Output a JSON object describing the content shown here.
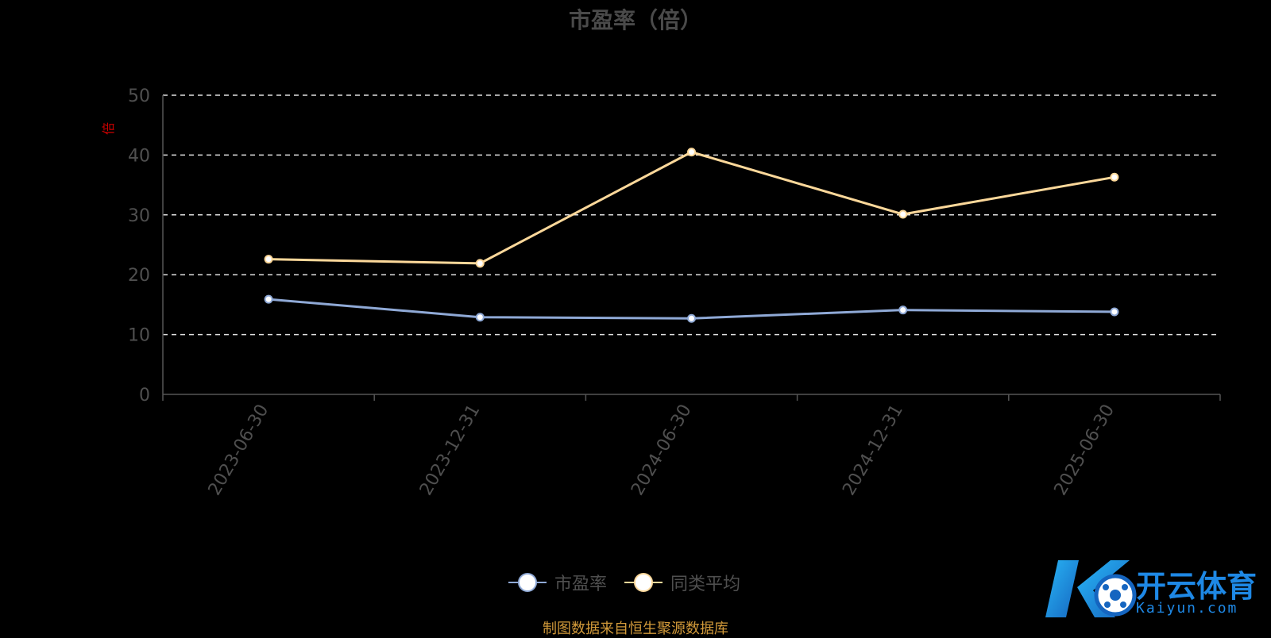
{
  "chart_data": {
    "type": "line",
    "title": "市盈率（倍）",
    "xlabel": "",
    "ylabel": "",
    "y_unit_mark": "倍",
    "categories": [
      "2023-06-30",
      "2023-12-31",
      "2024-06-30",
      "2024-12-31",
      "2025-06-30"
    ],
    "ylim": [
      0,
      50
    ],
    "yticks": [
      0,
      10,
      20,
      30,
      40,
      50
    ],
    "grid": true,
    "legend_position": "bottom",
    "series": [
      {
        "name": "市盈率",
        "color": "#8fa9d6",
        "values": [
          15.9,
          12.9,
          12.7,
          14.1,
          13.8
        ]
      },
      {
        "name": "同类平均",
        "color": "#fcd89a",
        "values": [
          22.6,
          21.9,
          40.5,
          30.1,
          36.3
        ]
      }
    ]
  },
  "source_note": "制图数据来自恒生聚源数据库",
  "watermark": {
    "brand": "开云体育",
    "domain": "Kaiyun.com"
  }
}
